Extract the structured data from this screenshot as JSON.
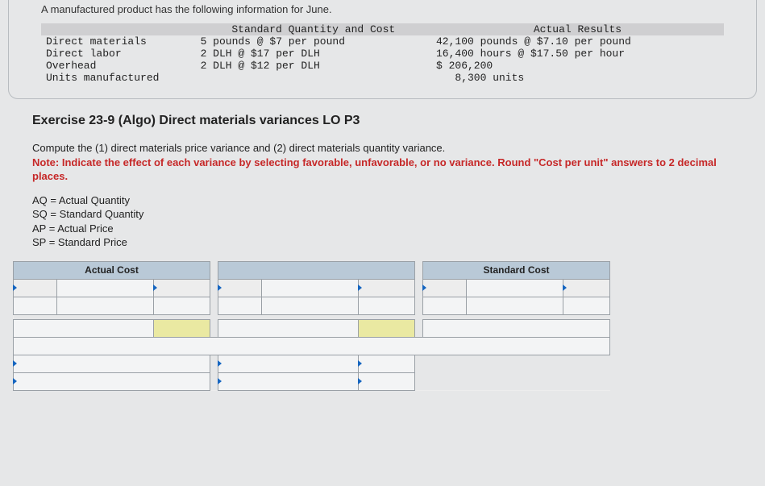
{
  "intro": "A manufactured product has the following information for June.",
  "columns": {
    "label": "",
    "standard": "Standard Quantity and Cost",
    "actual": "Actual Results"
  },
  "rows": [
    {
      "label": "Direct materials",
      "standard": "5 pounds @ $7 per pound",
      "actual": "42,100 pounds @ $7.10 per pound"
    },
    {
      "label": "Direct labor",
      "standard": "2 DLH @ $17 per DLH",
      "actual": "16,400 hours @ $17.50 per hour"
    },
    {
      "label": "Overhead",
      "standard": "2 DLH @ $12 per DLH",
      "actual": "$ 206,200"
    },
    {
      "label": "Units manufactured",
      "standard": "",
      "actual": "   8,300 units"
    }
  ],
  "exercise_title": "Exercise 23-9 (Algo) Direct materials variances LO P3",
  "compute_text": "Compute the (1) direct materials price variance and (2) direct materials quantity variance.",
  "note_text": "Note: Indicate the effect of each variance by selecting favorable, unfavorable, or no variance. Round \"Cost per unit\" answers to 2 decimal places.",
  "legend": [
    "AQ = Actual Quantity",
    "SQ = Standard Quantity",
    "AP = Actual Price",
    "SP = Standard Price"
  ],
  "answer_headers": {
    "actual": "Actual Cost",
    "standard": "Standard Cost"
  },
  "colors": {
    "page_bg": "#e6e7e8",
    "header_bg": "#b9c9d7",
    "yellow_cell": "#eae9a2",
    "grid_border": "#9aa0a6",
    "handle": "#1565c0",
    "note": "#c62828",
    "info_header_bg": "#cfcfd1"
  }
}
